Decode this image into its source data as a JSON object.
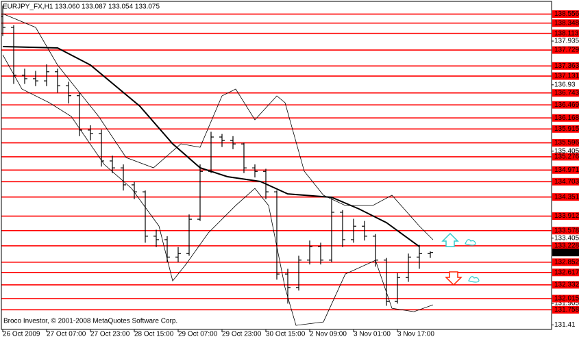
{
  "chart_data": {
    "type": "ohlc",
    "title": "EURJPY_FX,H1  133.060 133.087 133.054 133.075",
    "footer": "Broco Investor, © 2001-2008 MetaQuotes Software Corp.",
    "xlim": [
      -0.5,
      200.25
    ],
    "xticks": [
      {
        "value": 0,
        "label": "26 Oct 2009"
      },
      {
        "value": 16,
        "label": "27 Oct 07:00"
      },
      {
        "value": 32,
        "label": "27 Oct 23:00"
      },
      {
        "value": 48,
        "label": "28 Oct 15:00"
      },
      {
        "value": 64,
        "label": "29 Oct 07:00"
      },
      {
        "value": 80,
        "label": "29 Oct 23:00"
      },
      {
        "value": 96,
        "label": "30 Oct 15:00"
      },
      {
        "value": 112,
        "label": "2 Nov 09:00"
      },
      {
        "value": 128,
        "label": "3 Nov 01:00"
      },
      {
        "value": 144,
        "label": "3 Nov 17:00"
      }
    ],
    "ylim": [
      131.307,
      138.848
    ],
    "yticks": [
      137.935,
      136.93,
      135.405,
      133.405,
      131.905,
      131.41
    ],
    "levels": [
      138.556,
      138.348,
      138.113,
      137.729,
      137.363,
      137.131,
      136.743,
      136.469,
      136.168,
      135.915,
      135.596,
      135.276,
      134.971,
      134.703,
      134.351,
      133.912,
      133.578,
      133.228,
      132.852,
      132.617,
      132.332,
      132.015,
      131.758
    ],
    "level_color": "#ff0000",
    "current_price": 133.075,
    "bar_color": "#000000",
    "x": [
      0,
      4,
      8,
      12,
      16,
      20,
      24,
      28,
      32,
      36,
      40,
      44,
      48,
      52,
      56,
      60,
      64,
      68,
      72,
      76,
      80,
      84,
      88,
      92,
      96,
      100,
      104,
      108,
      112,
      116,
      120,
      124,
      128,
      132,
      136,
      140,
      144,
      148,
      152,
      156
    ],
    "open": [
      138.5,
      138.25,
      137.15,
      137.07,
      137.02,
      137.23,
      136.91,
      136.68,
      135.89,
      135.81,
      135.18,
      135.02,
      134.63,
      134.47,
      133.45,
      133.37,
      132.97,
      133.05,
      133.84,
      134.94,
      135.73,
      135.65,
      135.57,
      135.02,
      134.94,
      134.47,
      132.58,
      132.27,
      132.9,
      133.21,
      132.9,
      134.0,
      133.37,
      133.68,
      133.45,
      132.9,
      131.95,
      132.5,
      132.97,
      133.05
    ],
    "high": [
      138.75,
      138.3,
      137.3,
      137.25,
      137.4,
      137.3,
      137.0,
      136.75,
      136.0,
      135.9,
      135.3,
      135.1,
      134.7,
      134.5,
      133.6,
      133.45,
      133.2,
      133.95,
      135.1,
      135.85,
      135.8,
      135.75,
      135.6,
      135.1,
      135.0,
      134.5,
      132.7,
      133.0,
      133.35,
      133.3,
      134.35,
      134.05,
      133.85,
      133.8,
      133.5,
      132.95,
      132.6,
      133.05,
      133.25,
      133.1
    ],
    "low": [
      138.05,
      136.95,
      136.95,
      136.9,
      136.9,
      136.75,
      136.5,
      135.75,
      135.65,
      135.05,
      134.9,
      134.5,
      134.3,
      133.3,
      133.2,
      132.85,
      132.85,
      133.0,
      133.8,
      134.9,
      135.5,
      135.45,
      134.9,
      134.8,
      134.3,
      132.45,
      131.9,
      132.2,
      132.8,
      132.8,
      132.85,
      133.2,
      133.3,
      133.35,
      132.75,
      131.85,
      131.9,
      132.4,
      132.7,
      132.95
    ],
    "close": [
      138.25,
      137.15,
      137.07,
      137.02,
      137.23,
      136.91,
      136.68,
      135.89,
      135.81,
      135.18,
      135.02,
      134.63,
      134.47,
      133.45,
      133.37,
      132.97,
      133.05,
      133.84,
      134.94,
      135.73,
      135.65,
      135.57,
      135.02,
      134.94,
      134.47,
      132.58,
      132.27,
      132.9,
      133.21,
      132.9,
      134.0,
      133.37,
      133.68,
      133.45,
      132.9,
      131.95,
      132.5,
      132.97,
      133.05,
      133.075
    ],
    "moving_average": {
      "color": "#000000",
      "x": [
        0,
        20,
        32,
        50,
        62,
        72,
        82,
        94,
        104,
        120,
        130,
        140,
        152
      ],
      "values": [
        137.809,
        137.778,
        137.384,
        136.439,
        135.573,
        135.022,
        134.817,
        134.707,
        134.423,
        134.344,
        134.077,
        133.762,
        133.211
      ]
    },
    "bands_upper": {
      "color": "#000000",
      "x": [
        0,
        12,
        20,
        25,
        35,
        45,
        55,
        65,
        72,
        80,
        85,
        92,
        100,
        103,
        110,
        117,
        125,
        135,
        142,
        152,
        157
      ],
      "values": [
        138.565,
        138.25,
        137.384,
        136.99,
        136.203,
        135.258,
        135.022,
        135.573,
        135.494,
        136.675,
        136.833,
        136.124,
        136.675,
        136.518,
        134.943,
        134.392,
        134.155,
        134.155,
        134.392,
        133.683,
        133.368
      ]
    },
    "bands_lower": {
      "color": "#000000",
      "x": [
        0,
        7,
        17,
        25,
        37,
        47,
        57,
        62,
        67,
        75,
        85,
        92,
        97,
        103,
        107,
        117,
        125,
        136,
        142,
        150,
        157
      ],
      "values": [
        137.62,
        136.833,
        136.518,
        136.203,
        135.101,
        134.549,
        133.683,
        132.423,
        132.817,
        133.526,
        134.155,
        134.549,
        134.155,
        132.266,
        131.4,
        131.478,
        132.581,
        132.896,
        131.793,
        131.715,
        131.872
      ]
    }
  }
}
